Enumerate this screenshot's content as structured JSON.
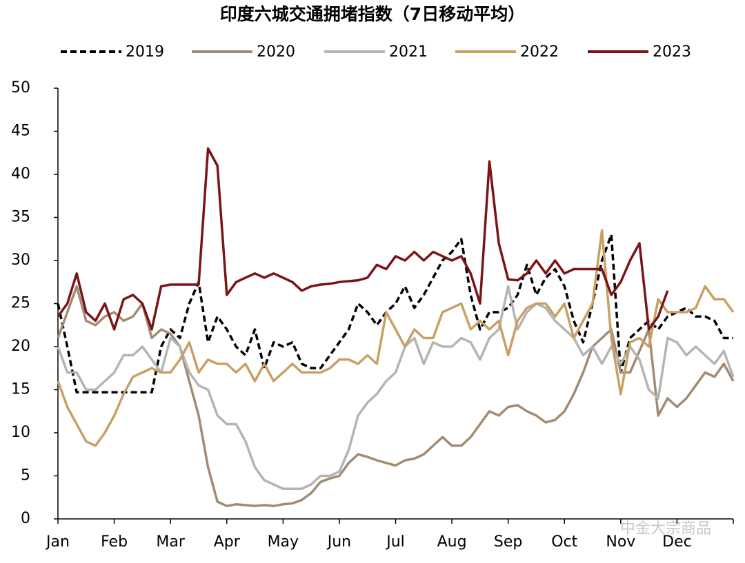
{
  "chart_data": {
    "type": "line",
    "title": "印度六城交通拥堵指数（7日移动平均）",
    "watermark": "中金大宗商品",
    "categories": [
      "Jan",
      null,
      null,
      null,
      null,
      null,
      "Feb",
      null,
      null,
      null,
      null,
      null,
      "Mar",
      null,
      null,
      null,
      null,
      null,
      "Apr",
      null,
      null,
      null,
      null,
      null,
      "May",
      null,
      null,
      null,
      null,
      null,
      "Jun",
      null,
      null,
      null,
      null,
      null,
      "Jul",
      null,
      null,
      null,
      null,
      null,
      "Aug",
      null,
      null,
      null,
      null,
      null,
      "Sep",
      null,
      null,
      null,
      null,
      null,
      "Oct",
      null,
      null,
      null,
      null,
      null,
      "Nov",
      null,
      null,
      null,
      null,
      null,
      "Dec",
      null,
      null,
      null,
      null,
      null,
      null
    ],
    "ylim": [
      0,
      50
    ],
    "yticks": [
      0,
      5,
      10,
      15,
      20,
      25,
      30,
      35,
      40,
      45,
      50
    ],
    "grid": false,
    "legend": "top",
    "series": [
      {
        "name": "2019",
        "color": "#000000",
        "dashed": true,
        "values": [
          25,
          20,
          14.7,
          14.7,
          14.7,
          14.7,
          14.7,
          14.7,
          14.7,
          14.7,
          14.7,
          20,
          22,
          21,
          25,
          27.5,
          20.5,
          23.5,
          22,
          20,
          19,
          22,
          17.5,
          20.5,
          20,
          20.5,
          18,
          17.5,
          17.5,
          19,
          20.5,
          22,
          25,
          24,
          22.5,
          24,
          25,
          27,
          24.5,
          26,
          28,
          30,
          31,
          32.5,
          26,
          22,
          24,
          24,
          24.5,
          26,
          29.5,
          26,
          28,
          29,
          27,
          23,
          20.5,
          25,
          30,
          33,
          17,
          21,
          22,
          23,
          22,
          23.5,
          24,
          24.5,
          23.5,
          23.5,
          23,
          21,
          21
        ]
      },
      {
        "name": "2020",
        "color": "#a38b73",
        "values": [
          21,
          24,
          27,
          23,
          22.5,
          23.5,
          24,
          23,
          23.5,
          25,
          21,
          22,
          21.5,
          20,
          16,
          12,
          6,
          2,
          1.5,
          1.7,
          1.6,
          1.5,
          1.6,
          1.5,
          1.7,
          1.8,
          2.2,
          3,
          4.3,
          4.7,
          5,
          6.5,
          7.5,
          7.2,
          6.8,
          6.5,
          6.2,
          6.8,
          7,
          7.5,
          8.5,
          9.5,
          8.5,
          8.5,
          9.5,
          11,
          12.5,
          12,
          13,
          13.2,
          12.5,
          12,
          11.2,
          11.5,
          12.5,
          14.5,
          17,
          20,
          21,
          22,
          17,
          17,
          19.5,
          22,
          12,
          14,
          13,
          14,
          15.5,
          17,
          16.5,
          18,
          16
        ]
      },
      {
        "name": "2021",
        "color": "#b4b4b4",
        "values": [
          20,
          17,
          17,
          15,
          15,
          16,
          17,
          19,
          19,
          20,
          18.5,
          17,
          21,
          20,
          17,
          15.5,
          15,
          12,
          11,
          11,
          9,
          6,
          4.5,
          4,
          3.5,
          3.5,
          3.5,
          4,
          5,
          5,
          5.5,
          8,
          12,
          13.5,
          14.5,
          16,
          17,
          20,
          21,
          18,
          20.5,
          20,
          20,
          21,
          20.5,
          18.5,
          21,
          22,
          27,
          22,
          24,
          25,
          24.5,
          23,
          22,
          21,
          19,
          20,
          18,
          20,
          18,
          20,
          18.5,
          15,
          14,
          21,
          20.5,
          19,
          20,
          19,
          18,
          19.5,
          16.5
        ]
      },
      {
        "name": "2022",
        "color": "#c8a064",
        "values": [
          16,
          13,
          11,
          9,
          8.5,
          10,
          12,
          14.5,
          16.5,
          17,
          17.5,
          17,
          17,
          18.5,
          20.5,
          17,
          18.5,
          18,
          18,
          17,
          18,
          16,
          18,
          16,
          17,
          18,
          17,
          17,
          17,
          17.5,
          18.5,
          18.5,
          18,
          19,
          18,
          24,
          22,
          20,
          22,
          21,
          21,
          24,
          24.5,
          25,
          22,
          23,
          22,
          23,
          19,
          23,
          24.5,
          25,
          25,
          23.5,
          25,
          21,
          23,
          25,
          33.5,
          21,
          14.5,
          20.5,
          21,
          20,
          25.5,
          24,
          24,
          24,
          24.5,
          27,
          25.5,
          25.5,
          24
        ]
      },
      {
        "name": "2023",
        "color": "#7a1416",
        "values": [
          23.5,
          25,
          28.5,
          24,
          23,
          25,
          22,
          25.5,
          26,
          25,
          22,
          27,
          27.2,
          27.2,
          27.2,
          27.2,
          43,
          41,
          26,
          27.5,
          28,
          28.5,
          28,
          28.5,
          28,
          27.5,
          26.5,
          27,
          27.2,
          27.3,
          27.5,
          27.6,
          27.7,
          28,
          29.5,
          29,
          30.5,
          30,
          31,
          30,
          31,
          30.5,
          30,
          30.5,
          28.5,
          25,
          41.5,
          32,
          27.8,
          27.7,
          28.5,
          30,
          28.5,
          30,
          28.5,
          29,
          29,
          29,
          29,
          26,
          27.5,
          30,
          32,
          22,
          23.5,
          26.5,
          null,
          null,
          null,
          null,
          null,
          null,
          null
        ]
      }
    ]
  }
}
